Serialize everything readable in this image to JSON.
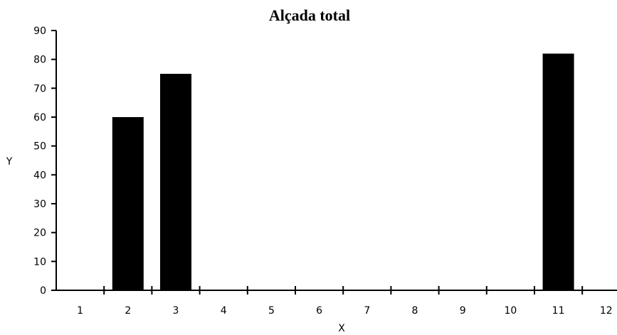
{
  "chart_data": {
    "type": "bar",
    "title": "Alçada total",
    "xlabel": "X",
    "ylabel": "Y",
    "categories": [
      "1",
      "2",
      "3",
      "4",
      "5",
      "6",
      "7",
      "8",
      "9",
      "10",
      "11",
      "12"
    ],
    "values": [
      0,
      60,
      75,
      0,
      0,
      0,
      0,
      0,
      0,
      0,
      82,
      0
    ],
    "ylim": [
      0,
      90
    ],
    "y_ticks": [
      "0",
      "10",
      "20",
      "30",
      "40",
      "50",
      "60",
      "70",
      "80",
      "90"
    ],
    "grid": false,
    "legend": "none",
    "colors": {
      "bar": "#000000",
      "axis": "#000000",
      "background": "#ffffff"
    }
  }
}
